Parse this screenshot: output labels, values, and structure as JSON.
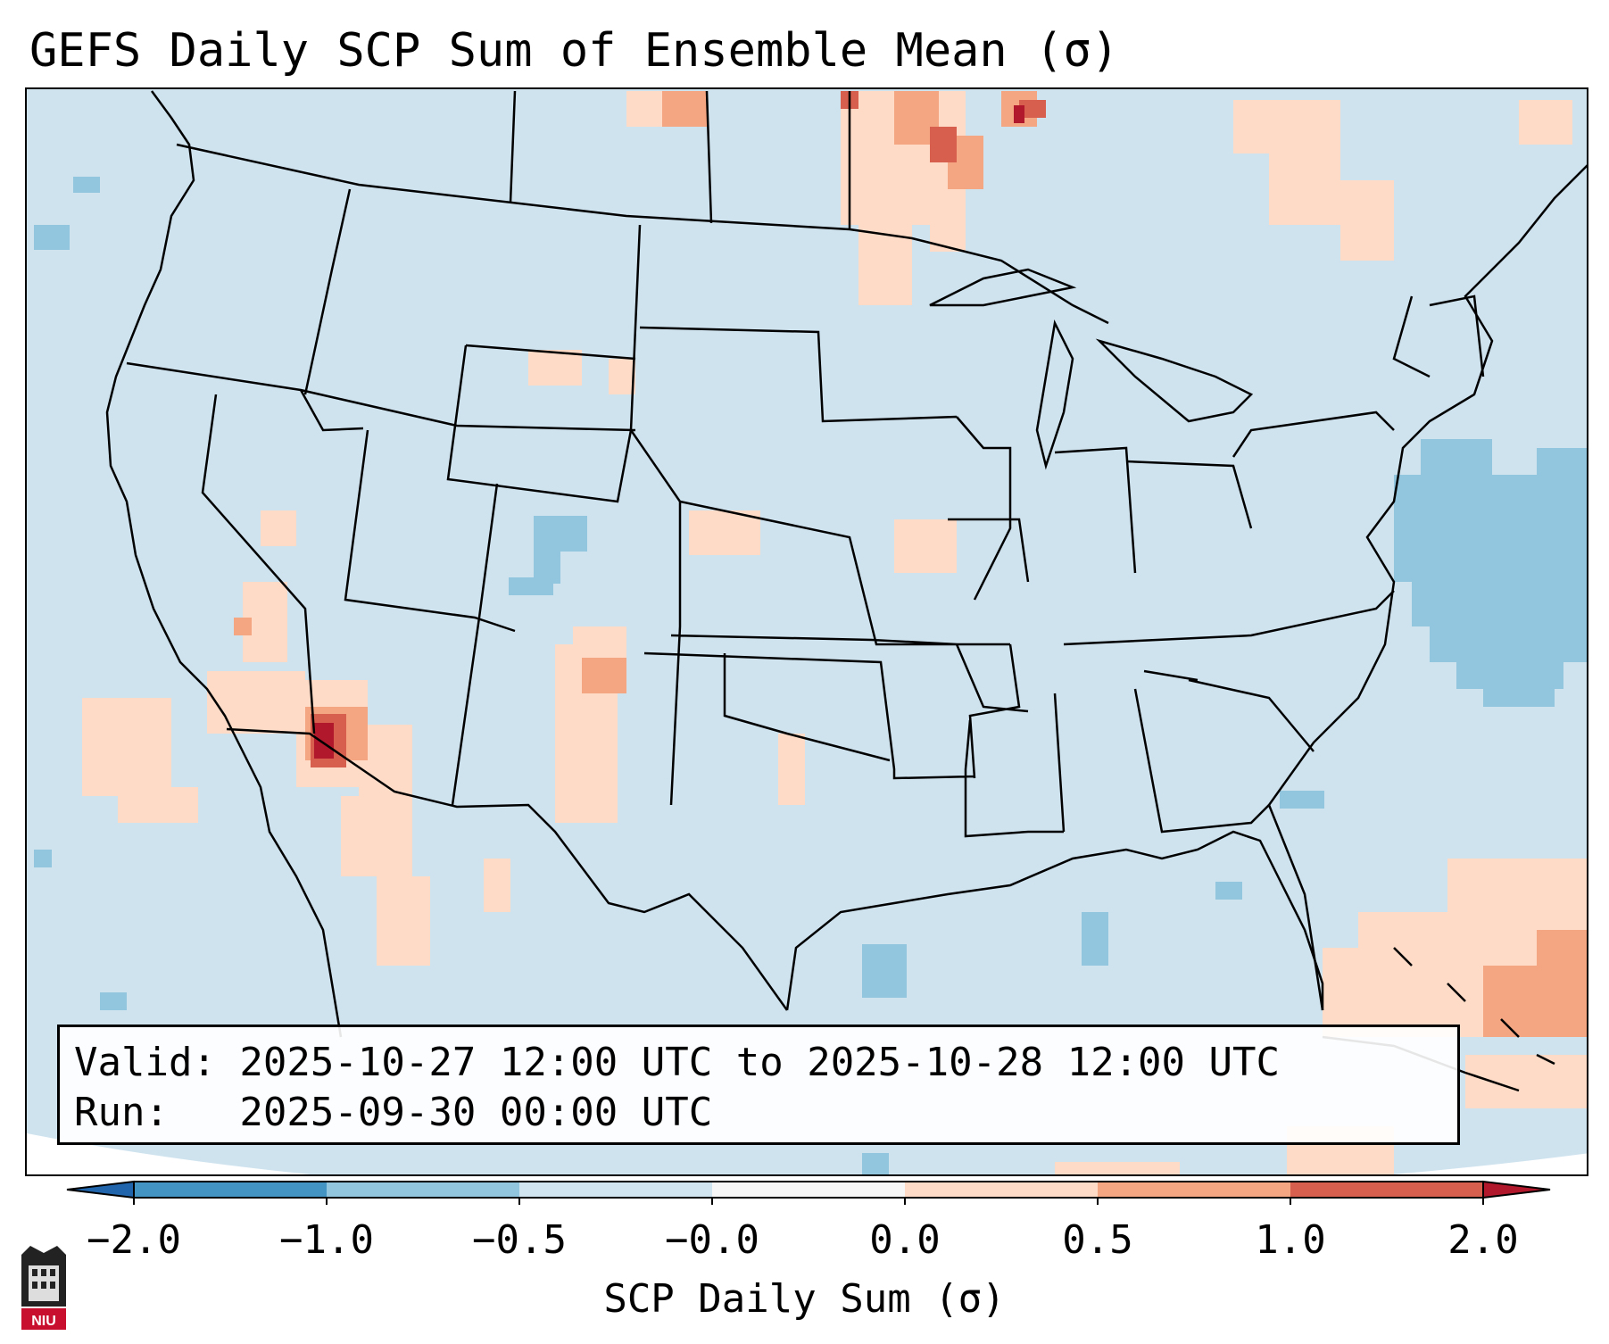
{
  "title": "GEFS Daily SCP Sum of Ensemble Mean (σ)",
  "info": {
    "valid_line": "Valid: 2025-10-27 12:00 UTC to 2025-10-28 12:00 UTC",
    "run_line": "Run:   2025-09-30 00:00 UTC"
  },
  "colorbar": {
    "label": "SCP Daily Sum (σ)",
    "ticks": [
      "−2.0",
      "−1.0",
      "−0.5",
      "−0.0",
      "0.0",
      "0.5",
      "1.0",
      "2.0"
    ],
    "bins": [
      {
        "from": "-2.0",
        "to": "-1.0",
        "color": "#4393c3"
      },
      {
        "from": "-1.0",
        "to": "-0.5",
        "color": "#92c5de"
      },
      {
        "from": "-0.5",
        "to": "-0.0",
        "color": "#d1e5f0"
      },
      {
        "from": "-0.0",
        "to": "0.0",
        "color": "#f7f7f7"
      },
      {
        "from": "0.0",
        "to": "0.5",
        "color": "#fddbc7"
      },
      {
        "from": "0.5",
        "to": "1.0",
        "color": "#f4a582"
      },
      {
        "from": "1.0",
        "to": "2.0",
        "color": "#d6604d"
      }
    ],
    "under_color": "#2166ac",
    "over_color": "#b2182b"
  },
  "logo": {
    "text": "NIU"
  }
}
